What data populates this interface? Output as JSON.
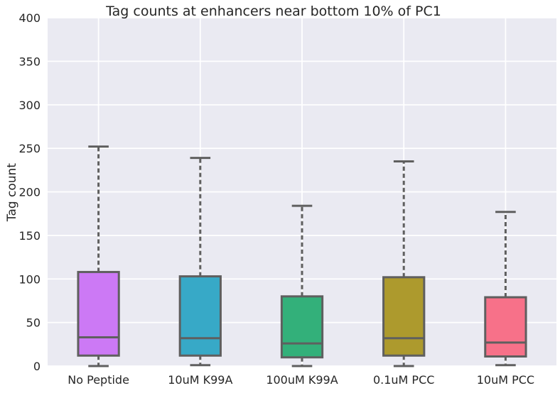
{
  "chart_data": {
    "type": "box",
    "title": "Tag counts at enhancers near bottom 10% of PC1",
    "xlabel": "",
    "ylabel": "Tag count",
    "ylim": [
      0,
      400
    ],
    "yticks": [
      0,
      50,
      100,
      150,
      200,
      250,
      300,
      350,
      400
    ],
    "categories": [
      "No Peptide",
      "10uM K99A",
      "100uM K99A",
      "0.1uM PCC",
      "10uM PCC"
    ],
    "boxes": [
      {
        "category": "No Peptide",
        "whisker_low": 0,
        "q1": 12,
        "median": 33,
        "q3": 108,
        "whisker_high": 252,
        "color": "#cc79f5"
      },
      {
        "category": "10uM K99A",
        "whisker_low": 1,
        "q1": 12,
        "median": 32,
        "q3": 103,
        "whisker_high": 239,
        "color": "#37a9c7"
      },
      {
        "category": "100uM K99A",
        "whisker_low": 0,
        "q1": 10,
        "median": 26,
        "q3": 80,
        "whisker_high": 184,
        "color": "#33b07a"
      },
      {
        "category": "0.1uM PCC",
        "whisker_low": 0,
        "q1": 12,
        "median": 32,
        "q3": 102,
        "whisker_high": 235,
        "color": "#ad9a2d"
      },
      {
        "category": "10uM PCC",
        "whisker_low": 1,
        "q1": 11,
        "median": 27,
        "q3": 79,
        "whisker_high": 177,
        "color": "#f77189"
      }
    ],
    "grid": true,
    "background": "#eaeaf2",
    "grid_color": "#ffffff",
    "box_edge_color": "#5f5f5f"
  }
}
